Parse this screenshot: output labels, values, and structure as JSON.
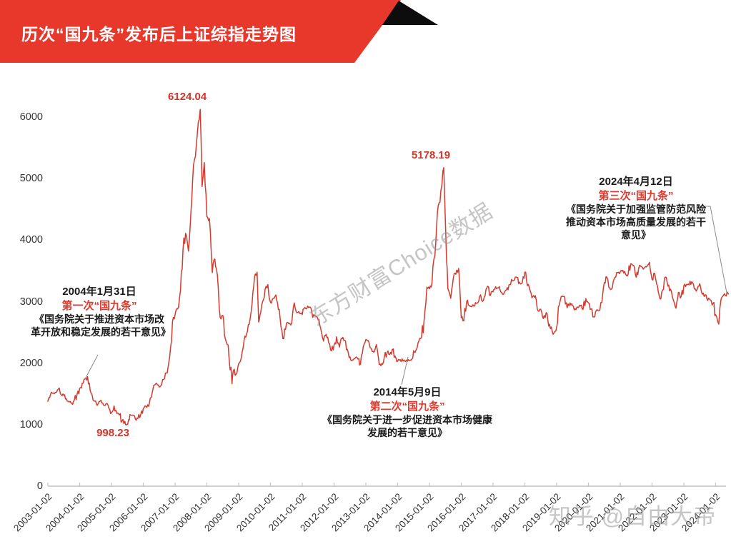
{
  "banner": {
    "title": "历次“国九条”发布后上证综指走势图",
    "bg_color": "#e8382c",
    "flag_color": "#0d0d0d"
  },
  "watermarks": {
    "center": "东方财富Choice数据",
    "corner": "知乎 @自由大帝"
  },
  "annotations": [
    {
      "date": "2004年1月31日",
      "event": "第一次“国九条”",
      "doc": "《国务院关于推进资本市场改革开放和稳定发展的若干意见》"
    },
    {
      "date": "2014年5月9日",
      "event": "第二次“国九条”",
      "doc": "《国务院关于进一步促进资本市场健康发展的若干意见》"
    },
    {
      "date": "2024年4月12日",
      "event": "第三次“国九条”",
      "doc": "《国务院关于加强监管防范风险推动资本市场高质量发展的若干意见》"
    }
  ],
  "chart_data": {
    "type": "line",
    "title": "历次“国九条”发布后上证综指走势图",
    "xlabel": "",
    "ylabel": "",
    "grid": false,
    "legend": "none",
    "line_color": "#d23b2e",
    "axis_color": "#c4c4c4",
    "xlim": [
      2003.0,
      2024.45
    ],
    "ylim": [
      0,
      6200
    ],
    "y_ticks": [
      0,
      1000,
      2000,
      3000,
      4000,
      5000,
      6000
    ],
    "x_ticks": [
      "2003-01-02",
      "2004-01-02",
      "2005-01-02",
      "2006-01-02",
      "2007-01-02",
      "2008-01-02",
      "2009-01-02",
      "2010-01-02",
      "2011-01-02",
      "2012-01-02",
      "2013-01-02",
      "2014-01-02",
      "2015-01-02",
      "2016-01-02",
      "2017-01-02",
      "2018-01-02",
      "2019-01-02",
      "2020-01-02",
      "2021-01-02",
      "2022-01-02",
      "2023-01-02",
      "2024-01-02"
    ],
    "extremes": [
      {
        "label": "6124.04",
        "x": 2007.79,
        "value": 6124.04,
        "placement": "above"
      },
      {
        "label": "5178.19",
        "x": 2015.45,
        "value": 5178.19,
        "placement": "above"
      },
      {
        "label": "998.23",
        "x": 2005.45,
        "value": 998.23,
        "placement": "below"
      }
    ],
    "series": [
      {
        "name": "上证综指",
        "points": [
          [
            2003.0,
            1380
          ],
          [
            2003.08,
            1485
          ],
          [
            2003.17,
            1515
          ],
          [
            2003.25,
            1525
          ],
          [
            2003.33,
            1580
          ],
          [
            2003.42,
            1486
          ],
          [
            2003.5,
            1476
          ],
          [
            2003.58,
            1422
          ],
          [
            2003.67,
            1367
          ],
          [
            2003.75,
            1348
          ],
          [
            2003.83,
            1397
          ],
          [
            2003.92,
            1497
          ],
          [
            2004.0,
            1590
          ],
          [
            2004.08,
            1675
          ],
          [
            2004.17,
            1742
          ],
          [
            2004.25,
            1780
          ],
          [
            2004.33,
            1555
          ],
          [
            2004.42,
            1399
          ],
          [
            2004.5,
            1386
          ],
          [
            2004.58,
            1342
          ],
          [
            2004.67,
            1397
          ],
          [
            2004.75,
            1320
          ],
          [
            2004.83,
            1340
          ],
          [
            2004.92,
            1266
          ],
          [
            2005.0,
            1191
          ],
          [
            2005.08,
            1306
          ],
          [
            2005.17,
            1181
          ],
          [
            2005.25,
            1159
          ],
          [
            2005.33,
            1060
          ],
          [
            2005.45,
            998.23
          ],
          [
            2005.54,
            1083
          ],
          [
            2005.58,
            1163
          ],
          [
            2005.67,
            1155
          ],
          [
            2005.75,
            1092
          ],
          [
            2005.83,
            1099
          ],
          [
            2005.92,
            1161
          ],
          [
            2006.0,
            1258
          ],
          [
            2006.08,
            1299
          ],
          [
            2006.17,
            1298
          ],
          [
            2006.25,
            1440
          ],
          [
            2006.33,
            1641
          ],
          [
            2006.42,
            1672
          ],
          [
            2006.5,
            1612
          ],
          [
            2006.58,
            1658
          ],
          [
            2006.67,
            1752
          ],
          [
            2006.75,
            1837
          ],
          [
            2006.83,
            2099
          ],
          [
            2006.92,
            2675
          ],
          [
            2007.0,
            2786
          ],
          [
            2007.08,
            2881
          ],
          [
            2007.17,
            3183
          ],
          [
            2007.25,
            3841
          ],
          [
            2007.33,
            4109
          ],
          [
            2007.42,
            3820
          ],
          [
            2007.5,
            4471
          ],
          [
            2007.58,
            5218
          ],
          [
            2007.67,
            5552
          ],
          [
            2007.79,
            6124.04
          ],
          [
            2007.85,
            4871
          ],
          [
            2007.92,
            5262
          ],
          [
            2008.0,
            4383
          ],
          [
            2008.08,
            4348
          ],
          [
            2008.17,
            3472
          ],
          [
            2008.25,
            3693
          ],
          [
            2008.33,
            3433
          ],
          [
            2008.42,
            2736
          ],
          [
            2008.5,
            2775
          ],
          [
            2008.58,
            2397
          ],
          [
            2008.67,
            2294
          ],
          [
            2008.79,
            1664
          ],
          [
            2008.83,
            1871
          ],
          [
            2008.92,
            1821
          ],
          [
            2009.0,
            1991
          ],
          [
            2009.08,
            2082
          ],
          [
            2009.17,
            2373
          ],
          [
            2009.25,
            2477
          ],
          [
            2009.33,
            2632
          ],
          [
            2009.42,
            2959
          ],
          [
            2009.5,
            3412
          ],
          [
            2009.58,
            3478
          ],
          [
            2009.63,
            2668
          ],
          [
            2009.67,
            2779
          ],
          [
            2009.75,
            2995
          ],
          [
            2009.83,
            3195
          ],
          [
            2009.92,
            3277
          ],
          [
            2010.0,
            2989
          ],
          [
            2010.08,
            3052
          ],
          [
            2010.17,
            3109
          ],
          [
            2010.25,
            2871
          ],
          [
            2010.33,
            2592
          ],
          [
            2010.42,
            2398
          ],
          [
            2010.5,
            2638
          ],
          [
            2010.58,
            2639
          ],
          [
            2010.67,
            2656
          ],
          [
            2010.75,
            2979
          ],
          [
            2010.83,
            2820
          ],
          [
            2010.92,
            2808
          ],
          [
            2011.0,
            2790
          ],
          [
            2011.08,
            2905
          ],
          [
            2011.17,
            2928
          ],
          [
            2011.25,
            2911
          ],
          [
            2011.33,
            2743
          ],
          [
            2011.42,
            2762
          ],
          [
            2011.5,
            2701
          ],
          [
            2011.58,
            2567
          ],
          [
            2011.67,
            2359
          ],
          [
            2011.75,
            2468
          ],
          [
            2011.83,
            2333
          ],
          [
            2011.92,
            2199
          ],
          [
            2012.0,
            2292
          ],
          [
            2012.08,
            2428
          ],
          [
            2012.17,
            2262
          ],
          [
            2012.25,
            2396
          ],
          [
            2012.33,
            2372
          ],
          [
            2012.42,
            2225
          ],
          [
            2012.5,
            2103
          ],
          [
            2012.58,
            2047
          ],
          [
            2012.67,
            2086
          ],
          [
            2012.75,
            2068
          ],
          [
            2012.83,
            1980
          ],
          [
            2012.92,
            2269
          ],
          [
            2013.0,
            2385
          ],
          [
            2013.08,
            2365
          ],
          [
            2013.17,
            2237
          ],
          [
            2013.25,
            2177
          ],
          [
            2013.33,
            2301
          ],
          [
            2013.42,
            1979
          ],
          [
            2013.5,
            1994
          ],
          [
            2013.58,
            2098
          ],
          [
            2013.67,
            2175
          ],
          [
            2013.75,
            2141
          ],
          [
            2013.83,
            2221
          ],
          [
            2013.92,
            2116
          ],
          [
            2014.0,
            2033
          ],
          [
            2014.08,
            2056
          ],
          [
            2014.17,
            2033
          ],
          [
            2014.25,
            2026
          ],
          [
            2014.36,
            2039
          ],
          [
            2014.42,
            2048
          ],
          [
            2014.5,
            2201
          ],
          [
            2014.58,
            2217
          ],
          [
            2014.67,
            2364
          ],
          [
            2014.75,
            2420
          ],
          [
            2014.83,
            2683
          ],
          [
            2014.92,
            3235
          ],
          [
            2015.0,
            3210
          ],
          [
            2015.08,
            3310
          ],
          [
            2015.17,
            3748
          ],
          [
            2015.25,
            4442
          ],
          [
            2015.33,
            4612
          ],
          [
            2015.45,
            5178.19
          ],
          [
            2015.54,
            3664
          ],
          [
            2015.58,
            3206
          ],
          [
            2015.67,
            3053
          ],
          [
            2015.75,
            3383
          ],
          [
            2015.83,
            3445
          ],
          [
            2015.92,
            3539
          ],
          [
            2016.0,
            2738
          ],
          [
            2016.08,
            2688
          ],
          [
            2016.17,
            3004
          ],
          [
            2016.25,
            2938
          ],
          [
            2016.33,
            2917
          ],
          [
            2016.42,
            2930
          ],
          [
            2016.5,
            2979
          ],
          [
            2016.58,
            3085
          ],
          [
            2016.67,
            3005
          ],
          [
            2016.75,
            3100
          ],
          [
            2016.83,
            3250
          ],
          [
            2016.92,
            3104
          ],
          [
            2017.0,
            3159
          ],
          [
            2017.08,
            3242
          ],
          [
            2017.17,
            3223
          ],
          [
            2017.25,
            3155
          ],
          [
            2017.33,
            3117
          ],
          [
            2017.42,
            3192
          ],
          [
            2017.5,
            3273
          ],
          [
            2017.58,
            3361
          ],
          [
            2017.67,
            3349
          ],
          [
            2017.75,
            3393
          ],
          [
            2017.83,
            3317
          ],
          [
            2017.92,
            3307
          ],
          [
            2018.0,
            3481
          ],
          [
            2018.08,
            3259
          ],
          [
            2018.17,
            3169
          ],
          [
            2018.25,
            3082
          ],
          [
            2018.33,
            3095
          ],
          [
            2018.42,
            2847
          ],
          [
            2018.5,
            2876
          ],
          [
            2018.58,
            2725
          ],
          [
            2018.67,
            2821
          ],
          [
            2018.75,
            2603
          ],
          [
            2018.83,
            2588
          ],
          [
            2018.92,
            2494
          ],
          [
            2019.0,
            2585
          ],
          [
            2019.08,
            2941
          ],
          [
            2019.17,
            3091
          ],
          [
            2019.25,
            3078
          ],
          [
            2019.33,
            2899
          ],
          [
            2019.42,
            2979
          ],
          [
            2019.5,
            2933
          ],
          [
            2019.58,
            2886
          ],
          [
            2019.67,
            2905
          ],
          [
            2019.75,
            2929
          ],
          [
            2019.83,
            2872
          ],
          [
            2019.92,
            3050
          ],
          [
            2020.0,
            2977
          ],
          [
            2020.08,
            2880
          ],
          [
            2020.17,
            2750
          ],
          [
            2020.25,
            2860
          ],
          [
            2020.33,
            2852
          ],
          [
            2020.42,
            2985
          ],
          [
            2020.5,
            3310
          ],
          [
            2020.58,
            3396
          ],
          [
            2020.67,
            3218
          ],
          [
            2020.75,
            3225
          ],
          [
            2020.83,
            3392
          ],
          [
            2020.92,
            3473
          ],
          [
            2021.0,
            3483
          ],
          [
            2021.08,
            3509
          ],
          [
            2021.17,
            3442
          ],
          [
            2021.25,
            3447
          ],
          [
            2021.33,
            3615
          ],
          [
            2021.42,
            3591
          ],
          [
            2021.5,
            3397
          ],
          [
            2021.58,
            3544
          ],
          [
            2021.67,
            3568
          ],
          [
            2021.75,
            3547
          ],
          [
            2021.83,
            3564
          ],
          [
            2021.92,
            3640
          ],
          [
            2022.0,
            3361
          ],
          [
            2022.08,
            3462
          ],
          [
            2022.17,
            3252
          ],
          [
            2022.25,
            3047
          ],
          [
            2022.33,
            3186
          ],
          [
            2022.42,
            3399
          ],
          [
            2022.5,
            3253
          ],
          [
            2022.58,
            3202
          ],
          [
            2022.67,
            3024
          ],
          [
            2022.75,
            2893
          ],
          [
            2022.83,
            3151
          ],
          [
            2022.92,
            3089
          ],
          [
            2023.0,
            3256
          ],
          [
            2023.08,
            3280
          ],
          [
            2023.17,
            3273
          ],
          [
            2023.25,
            3323
          ],
          [
            2023.33,
            3205
          ],
          [
            2023.42,
            3202
          ],
          [
            2023.5,
            3291
          ],
          [
            2023.58,
            3120
          ],
          [
            2023.67,
            3110
          ],
          [
            2023.75,
            3019
          ],
          [
            2023.83,
            3030
          ],
          [
            2023.92,
            2975
          ],
          [
            2024.0,
            2789
          ],
          [
            2024.1,
            2635
          ],
          [
            2024.17,
            3041
          ],
          [
            2024.25,
            3105
          ],
          [
            2024.33,
            3090
          ],
          [
            2024.4,
            3125
          ]
        ]
      }
    ]
  }
}
